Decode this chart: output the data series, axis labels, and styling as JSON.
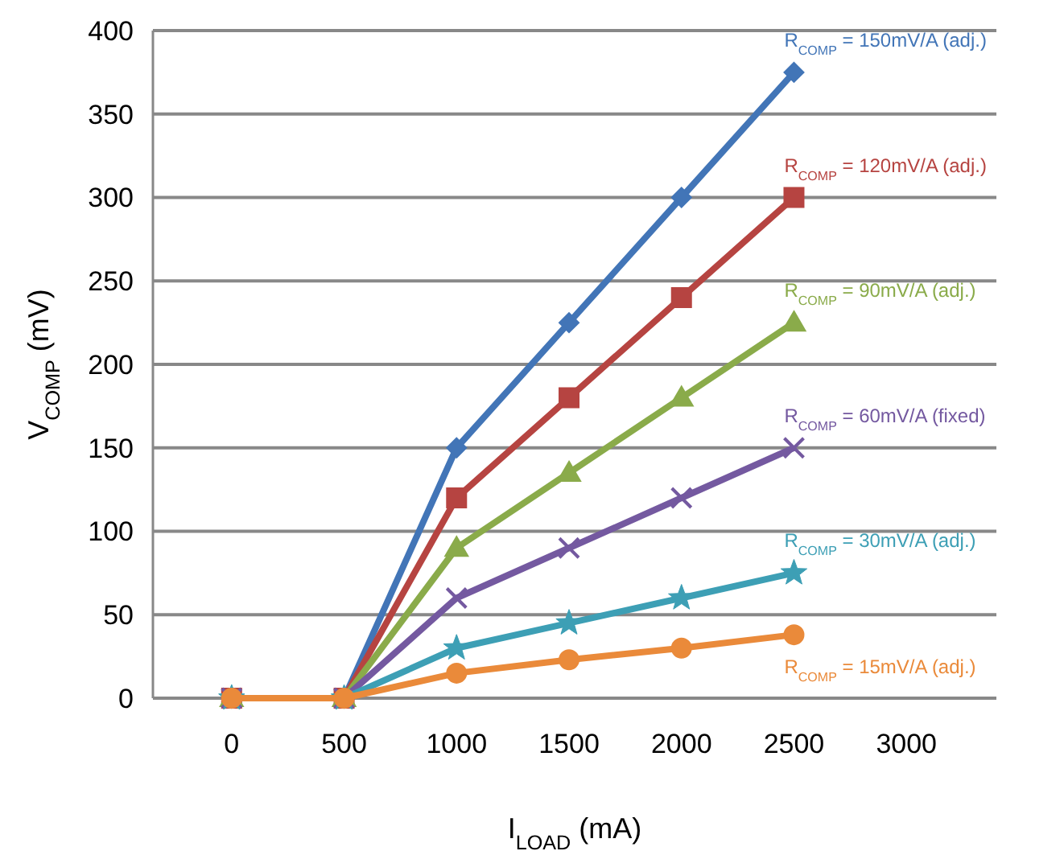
{
  "chart_data": {
    "type": "line",
    "xlabel": "I$_{LOAD}$ (mA)",
    "ylabel": "V$_{COMP}$ (mV)",
    "x": [
      0,
      500,
      1000,
      1500,
      2000,
      2500
    ],
    "xlim": [
      -350,
      3400
    ],
    "xticks": [
      0,
      500,
      1000,
      1500,
      2000,
      2500,
      3000
    ],
    "ylim": [
      0,
      400
    ],
    "yticks": [
      0,
      50,
      100,
      150,
      200,
      250,
      300,
      350,
      400
    ],
    "grid": "y",
    "legend": false,
    "series": [
      {
        "name": "R$_{COMP}$ = 150mV/A (adj.)",
        "color": "#4275b7",
        "marker": "diamond",
        "values": [
          0,
          0,
          150,
          225,
          300,
          375
        ]
      },
      {
        "name": "R$_{COMP}$ = 120mV/A (adj.)",
        "color": "#b64441",
        "marker": "square",
        "values": [
          0,
          0,
          120,
          180,
          240,
          300
        ]
      },
      {
        "name": "R$_{COMP}$ = 90mV/A (adj.)",
        "color": "#8aab4a",
        "marker": "triangle",
        "values": [
          0,
          0,
          90,
          135,
          180,
          225
        ]
      },
      {
        "name": "R$_{COMP}$ = 60mV/A (fixed)",
        "color": "#7459a0",
        "marker": "cross",
        "values": [
          0,
          0,
          60,
          90,
          120,
          150
        ]
      },
      {
        "name": "R$_{COMP}$ = 30mV/A (adj.)",
        "color": "#3d9fb5",
        "marker": "star",
        "values": [
          0,
          0,
          30,
          45,
          60,
          75
        ]
      },
      {
        "name": "R$_{COMP}$ = 15mV/A (adj.)",
        "color": "#ea8a3a",
        "marker": "circle",
        "values": [
          0,
          0,
          15,
          23,
          30,
          38
        ]
      }
    ]
  }
}
